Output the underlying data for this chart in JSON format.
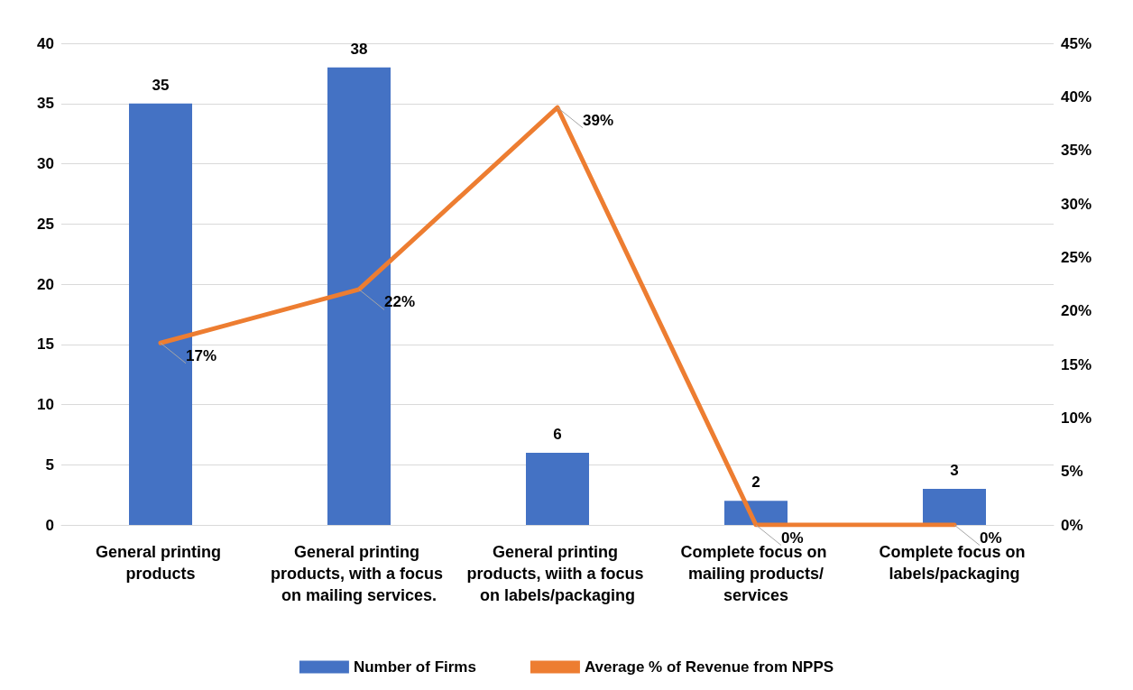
{
  "chart_data": {
    "type": "bar",
    "categories": [
      "General printing products",
      "General printing products, with a focus on mailing services.",
      "General printing products, wiith a focus on labels/packaging",
      "Complete focus on mailing products/services",
      "Complete focus on labels/packaging"
    ],
    "series": [
      {
        "name": "Number of Firms",
        "color": "#4472c4",
        "values": [
          35,
          38,
          6,
          2,
          3
        ],
        "value_labels": [
          "35",
          "38",
          "6",
          "2",
          "3"
        ]
      },
      {
        "name": "Average % of Revenue from NPPS",
        "type": "line",
        "axis": "y2",
        "color": "#ed7d31",
        "values": [
          17,
          22,
          39,
          0,
          0
        ],
        "value_labels": [
          "17%",
          "22%",
          "39%",
          "0%",
          "0%"
        ]
      }
    ],
    "ylim": [
      0,
      40
    ],
    "yticks": [
      0,
      5,
      10,
      15,
      20,
      25,
      30,
      35,
      40
    ],
    "y2lim": [
      0,
      45
    ],
    "y2ticks": [
      {
        "value": 0,
        "label": "0%"
      },
      {
        "value": 5,
        "label": "5%"
      },
      {
        "value": 10,
        "label": "10%"
      },
      {
        "value": 15,
        "label": "15%"
      },
      {
        "value": 20,
        "label": "20%"
      },
      {
        "value": 25,
        "label": "25%"
      },
      {
        "value": 30,
        "label": "30%"
      },
      {
        "value": 35,
        "label": "35%"
      },
      {
        "value": 40,
        "label": "40%"
      },
      {
        "value": 45,
        "label": "45%"
      }
    ],
    "grid": "y",
    "legend": "bottom",
    "marker": "none",
    "line_style": "solid"
  }
}
